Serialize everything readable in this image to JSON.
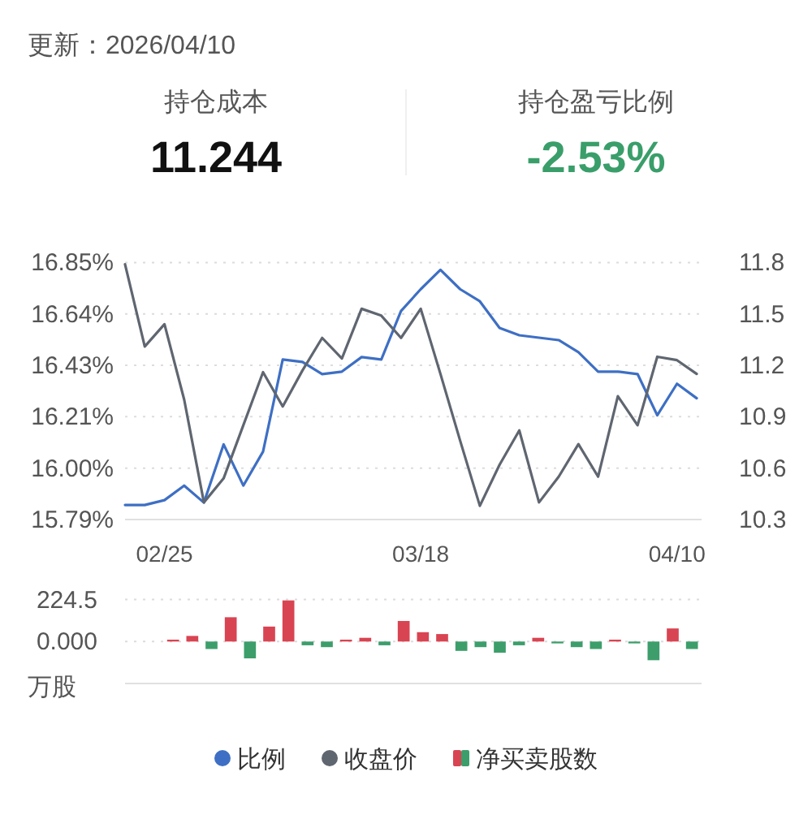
{
  "chart_data": [
    {
      "type": "other",
      "title": "更新：2026/04/10",
      "annotations": [
        "持仓成本",
        "11.244",
        "持仓盈亏比例",
        "-2.53%"
      ]
    },
    {
      "type": "line",
      "categories": [
        null,
        null,
        "02/25",
        null,
        null,
        null,
        null,
        null,
        null,
        null,
        null,
        null,
        null,
        null,
        null,
        "03/18",
        null,
        null,
        null,
        null,
        null,
        null,
        null,
        null,
        null,
        null,
        null,
        null,
        "04/10",
        null
      ],
      "ylim": [
        15.79,
        16.85
      ],
      "yticks": [
        {
          "value": 15.79,
          "label": "15.79%"
        },
        {
          "value": 16.002,
          "label": "16.00%"
        },
        {
          "value": 16.214,
          "label": "16.21%"
        },
        {
          "value": 16.426,
          "label": "16.43%"
        },
        {
          "value": 16.638,
          "label": "16.64%"
        },
        {
          "value": 16.85,
          "label": "16.85%"
        }
      ],
      "y2lim": [
        10.3,
        11.8
      ],
      "y2ticks": [
        10.3,
        10.6,
        10.9,
        11.2,
        11.5,
        11.8
      ],
      "grid": "y",
      "legend": "bottom",
      "marker": "none",
      "line_style": "solid",
      "series": [
        {
          "name": "比例",
          "color": "#3e6fc4",
          "values": [
            15.85,
            15.85,
            15.87,
            15.93,
            15.86,
            16.1,
            15.93,
            16.07,
            16.45,
            16.44,
            16.39,
            16.4,
            16.46,
            16.45,
            16.65,
            16.74,
            16.82,
            16.74,
            16.69,
            16.58,
            16.55,
            16.54,
            16.53,
            16.48,
            16.4,
            16.4,
            16.39,
            16.22,
            16.35,
            16.29
          ]
        },
        {
          "name": "收盘价",
          "color": "#5f6670",
          "axis": "y2",
          "values": [
            11.79,
            11.31,
            11.44,
            11.0,
            10.4,
            10.54,
            10.85,
            11.16,
            10.96,
            11.17,
            11.36,
            11.24,
            11.53,
            11.49,
            11.36,
            11.53,
            11.15,
            10.76,
            10.38,
            10.62,
            10.82,
            10.4,
            10.55,
            10.74,
            10.55,
            11.02,
            10.85,
            11.25,
            11.23,
            11.15
          ]
        }
      ]
    },
    {
      "type": "bar",
      "categories": [
        null,
        null,
        null,
        null,
        null,
        null,
        null,
        null,
        null,
        null,
        null,
        null,
        null,
        null,
        null,
        null,
        null,
        null,
        null,
        null,
        null,
        null,
        null,
        null,
        null,
        null,
        null,
        null,
        null,
        null
      ],
      "ylabel": "万股",
      "ylim": [
        -224.5,
        224.5
      ],
      "yticks": [
        {
          "value": 0,
          "label": "0.000"
        },
        224.5
      ],
      "tick_labels": "y",
      "grid": "y",
      "legend": "bottom",
      "series": [
        {
          "name": "净买卖股数",
          "color": "#d94452",
          "colors": [
            "#d94452",
            "#d94452",
            "#d94452",
            "#d94452",
            "#3d9e6b",
            "#d94452",
            "#3d9e6b",
            "#d94452",
            "#d94452",
            "#3d9e6b",
            "#3d9e6b",
            "#d94452",
            "#d94452",
            "#3d9e6b",
            "#d94452",
            "#d94452",
            "#d94452",
            "#3d9e6b",
            "#3d9e6b",
            "#3d9e6b",
            "#3d9e6b",
            "#d94452",
            "#3d9e6b",
            "#3d9e6b",
            "#3d9e6b",
            "#d94452",
            "#3d9e6b",
            "#3d9e6b",
            "#d94452",
            "#3d9e6b"
          ],
          "values": [
            null,
            null,
            10,
            30,
            -40,
            130,
            -90,
            80,
            220,
            -20,
            -30,
            10,
            20,
            -20,
            110,
            50,
            40,
            -50,
            -30,
            -60,
            -20,
            20,
            -10,
            -30,
            -40,
            10,
            -10,
            -100,
            70,
            -40
          ]
        }
      ]
    }
  ]
}
